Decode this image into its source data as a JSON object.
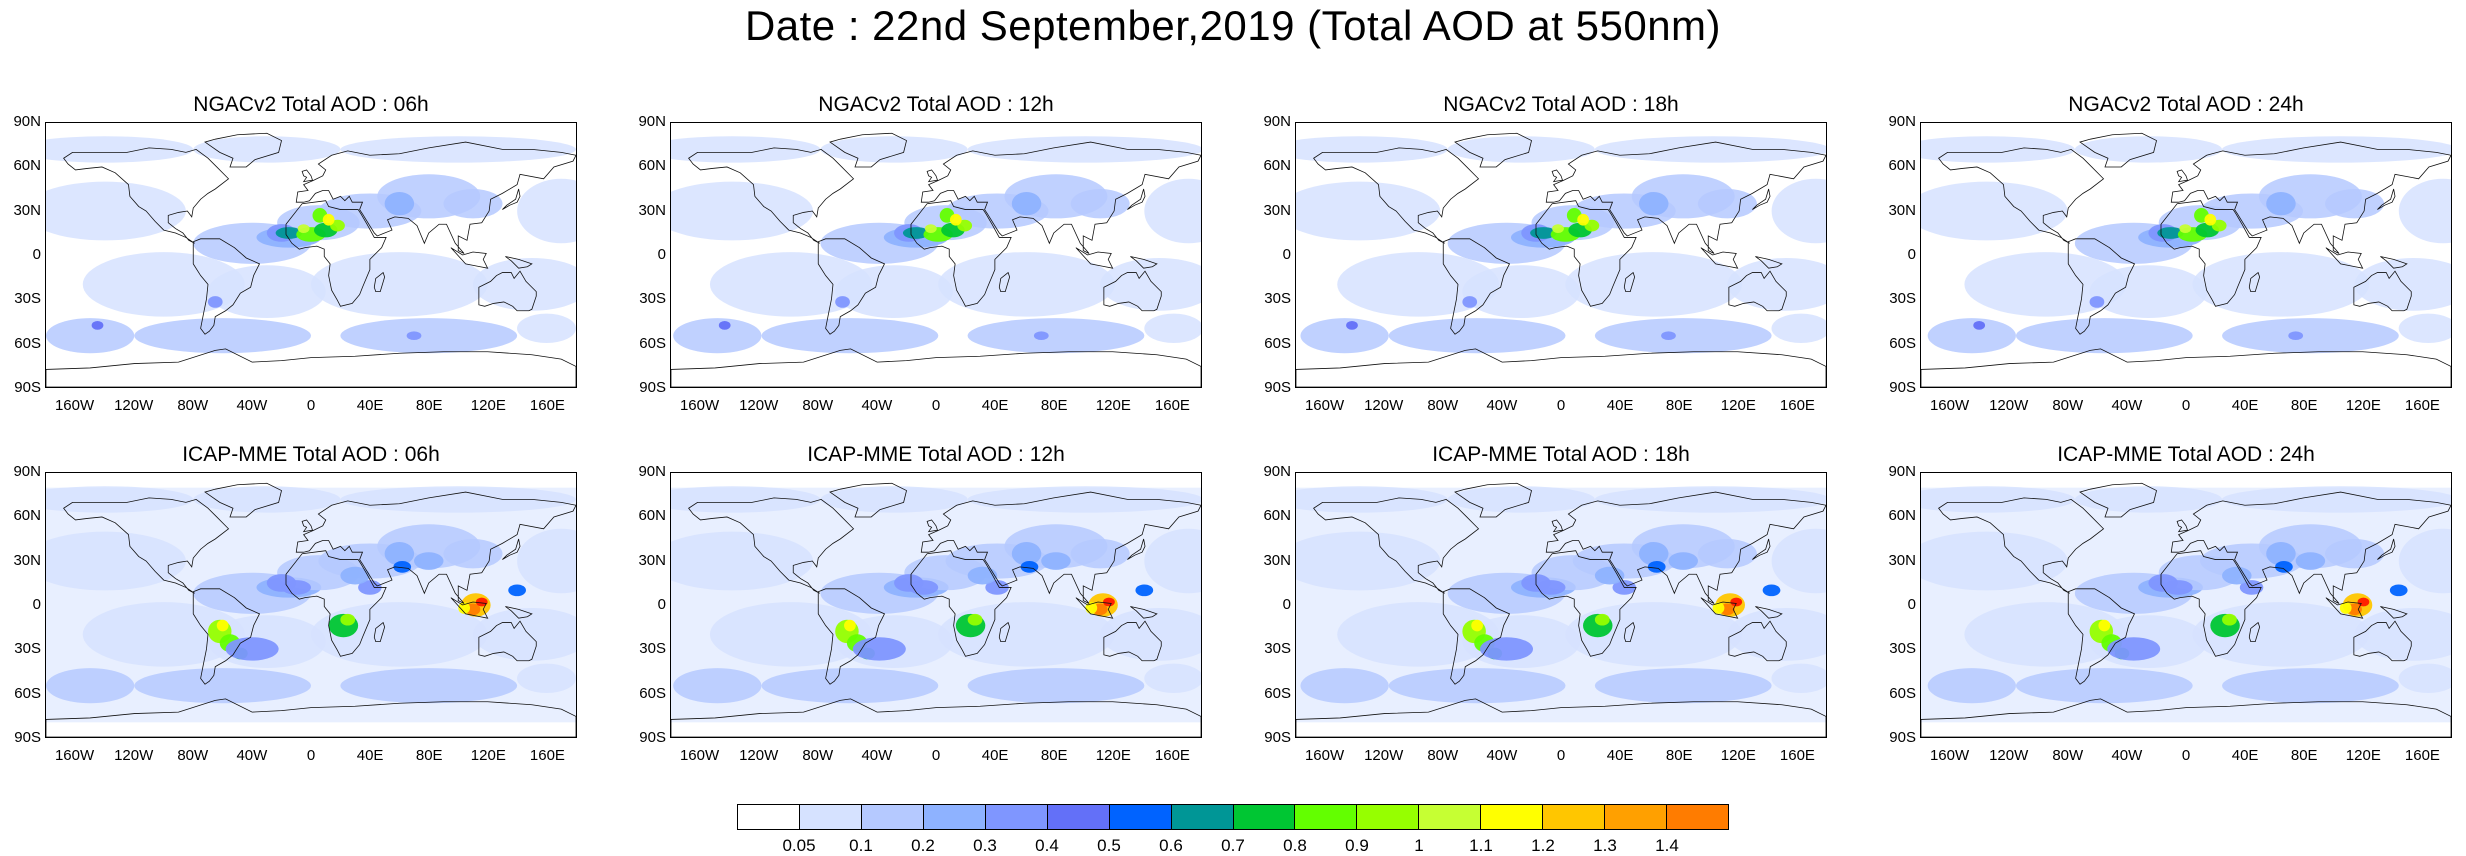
{
  "title": "Date : 22nd September,2019 (Total AOD at 550nm)",
  "lat_ticks": [
    "90N",
    "60N",
    "30N",
    "0",
    "30S",
    "60S",
    "90S"
  ],
  "lon_ticks": [
    "160W",
    "120W",
    "80W",
    "40W",
    "0",
    "40E",
    "80E",
    "120E",
    "160E"
  ],
  "panels": [
    {
      "title": "NGACv2 Total AOD : 06h",
      "model": "NGACv2",
      "hour": "06h"
    },
    {
      "title": "NGACv2 Total AOD : 12h",
      "model": "NGACv2",
      "hour": "12h"
    },
    {
      "title": "NGACv2 Total AOD : 18h",
      "model": "NGACv2",
      "hour": "18h"
    },
    {
      "title": "NGACv2 Total AOD : 24h",
      "model": "NGACv2",
      "hour": "24h"
    },
    {
      "title": "ICAP-MME Total AOD : 06h",
      "model": "ICAP-MME",
      "hour": "06h"
    },
    {
      "title": "ICAP-MME Total AOD : 12h",
      "model": "ICAP-MME",
      "hour": "12h"
    },
    {
      "title": "ICAP-MME Total AOD : 18h",
      "model": "ICAP-MME",
      "hour": "18h"
    },
    {
      "title": "ICAP-MME Total AOD : 24h",
      "model": "ICAP-MME",
      "hour": "24h"
    }
  ],
  "colorbar": {
    "colors": [
      "#ffffff",
      "#d6e2ff",
      "#b5c9ff",
      "#8eb2ff",
      "#7f96ff",
      "#6370f8",
      "#0063ff",
      "#009696",
      "#00c633",
      "#63ff00",
      "#96ff00",
      "#c6ff33",
      "#ffff00",
      "#ffc600",
      "#ffa000",
      "#ff7c00",
      "#ff1900"
    ],
    "labels": [
      "0.05",
      "0.1",
      "0.2",
      "0.3",
      "0.4",
      "0.5",
      "0.6",
      "0.7",
      "0.8",
      "0.9",
      "1",
      "1.1",
      "1.2",
      "1.3",
      "1.4"
    ]
  }
}
